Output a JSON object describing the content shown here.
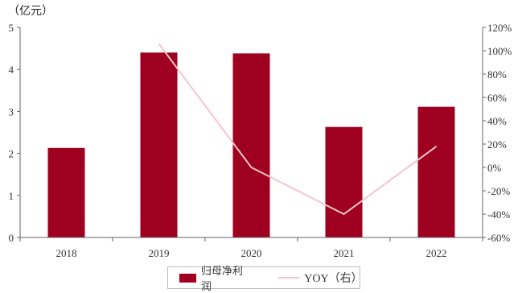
{
  "chart_data": {
    "type": "bar",
    "unit_label": "（亿元）",
    "categories": [
      "2018",
      "2019",
      "2020",
      "2021",
      "2022"
    ],
    "series": [
      {
        "name": "归母净利润",
        "type": "bar",
        "axis": "left",
        "color": "#a00020",
        "values": [
          2.13,
          4.4,
          4.38,
          2.63,
          3.11
        ]
      },
      {
        "name": "YOY（右）",
        "type": "line",
        "axis": "right",
        "color": "#f3c6ce",
        "values": [
          null,
          106,
          0,
          -40,
          18
        ]
      }
    ],
    "left_axis": {
      "ylim": [
        0,
        5
      ],
      "ticks": [
        "0",
        "1",
        "2",
        "3",
        "4",
        "5"
      ]
    },
    "right_axis": {
      "ylim": [
        -60,
        120
      ],
      "ticks": [
        "-60%",
        "-40%",
        "-20%",
        "0%",
        "20%",
        "40%",
        "60%",
        "80%",
        "100%",
        "120%"
      ]
    },
    "legend": {
      "position": "bottom",
      "bar_label": "归母净利润",
      "line_label": "YOY（右）"
    }
  }
}
